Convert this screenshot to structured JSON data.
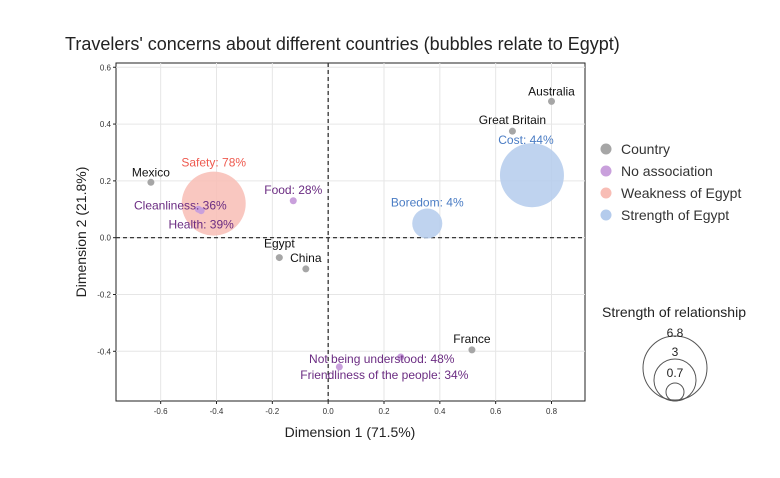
{
  "chart_data": {
    "type": "scatter",
    "title": "Travelers' concerns about different countries (bubbles relate to Egypt)",
    "xlabel": "Dimension 1 (71.5%)",
    "ylabel": "Dimension 2 (21.8%)",
    "xlim": [
      -0.76,
      0.92
    ],
    "ylim": [
      -0.575,
      0.615
    ],
    "xticks": [
      -0.6,
      -0.4,
      -0.2,
      0.0,
      0.2,
      0.4,
      0.6,
      0.8
    ],
    "xtick_labels": [
      "-0.6",
      "-0.4",
      "-0.2",
      "0.0",
      "0.2",
      "0.4",
      "0.6",
      "0.8"
    ],
    "yticks": [
      -0.4,
      -0.2,
      0.0,
      0.2,
      0.4,
      0.6
    ],
    "ytick_labels": [
      "-0.4",
      "-0.2",
      "0.0",
      "0.2",
      "0.4",
      "0.6"
    ],
    "grid": true,
    "reference_lines": {
      "x": 0,
      "y": 0,
      "style": "dashed"
    },
    "legend": {
      "placement": "right",
      "entries": [
        {
          "label": "Country",
          "color": "#a6a6a6"
        },
        {
          "label": "No association",
          "color": "#c9a0dc"
        },
        {
          "label": "Weakness of Egypt",
          "color": "#f8bdb5"
        },
        {
          "label": "Strength of Egypt",
          "color": "#b4cbec"
        }
      ]
    },
    "size_legend": {
      "title": "Strength of relationship",
      "values": [
        6.8,
        3,
        0.7
      ],
      "labels": [
        "6.8",
        "3",
        "0.7"
      ]
    },
    "points": [
      {
        "label": "Australia",
        "x": 0.8,
        "y": 0.48,
        "group": "Country"
      },
      {
        "label": "Great Britain",
        "x": 0.66,
        "y": 0.375,
        "group": "Country"
      },
      {
        "label": "Mexico",
        "x": -0.635,
        "y": 0.195,
        "group": "Country"
      },
      {
        "label": "Egypt",
        "x": -0.175,
        "y": -0.07,
        "group": "Country"
      },
      {
        "label": "China",
        "x": -0.08,
        "y": -0.11,
        "group": "Country"
      },
      {
        "label": "France",
        "x": 0.515,
        "y": -0.395,
        "group": "Country"
      },
      {
        "label": "Food: 28%",
        "x": -0.125,
        "y": 0.13,
        "group": "No association"
      },
      {
        "label": "Cleanliness: 36%",
        "x": -0.465,
        "y": 0.1,
        "group": "No association"
      },
      {
        "label": "Health: 39%",
        "x": -0.455,
        "y": 0.095,
        "group": "No association"
      },
      {
        "label": "Not being understood: 48%",
        "x": 0.26,
        "y": -0.42,
        "group": "No association"
      },
      {
        "label": "Friendliness of the people: 34%",
        "x": 0.04,
        "y": -0.455,
        "group": "No association"
      },
      {
        "label": "Safety: 78%",
        "x": -0.41,
        "y": 0.12,
        "group": "Weakness of Egypt",
        "strength": 6.8
      },
      {
        "label": "Cost: 44%",
        "x": 0.73,
        "y": 0.22,
        "group": "Strength of Egypt",
        "strength": 6.8
      },
      {
        "label": "Boredom: 4%",
        "x": 0.355,
        "y": 0.05,
        "group": "Strength of Egypt",
        "strength": 1.5
      }
    ]
  }
}
